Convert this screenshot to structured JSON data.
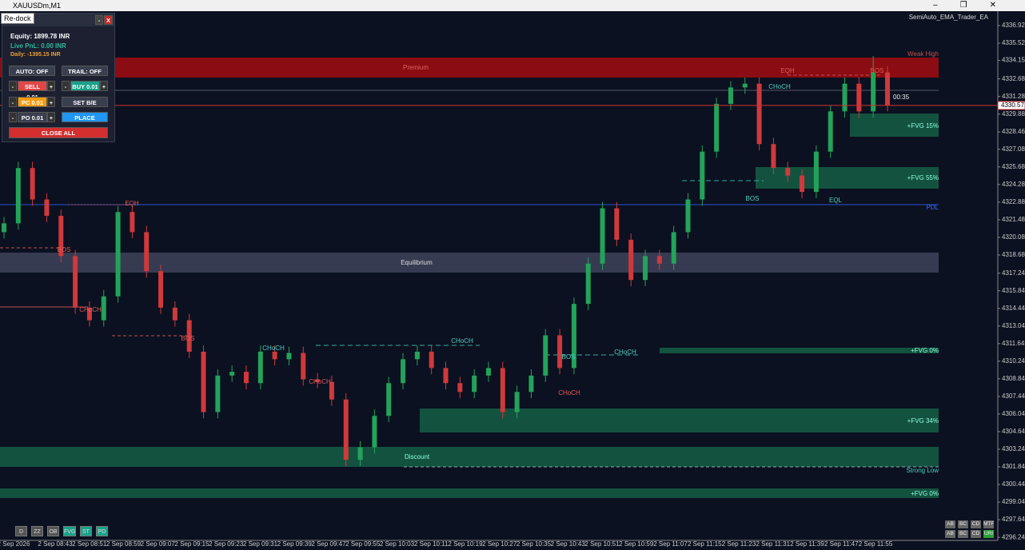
{
  "window": {
    "title": "XAUUSDm,M1"
  },
  "ea_name": "SemiAuto_EMA_Trader_EA",
  "panel": {
    "tooltip": "Re-dock",
    "minimize": "-",
    "close": "X",
    "equity": "Equity: 1899.78 INR",
    "live_pnl": "Live PnL: 0.00 INR",
    "daily": "Daily: -1395.15 INR",
    "auto": "AUTO: OFF",
    "trail": "TRAIL: OFF",
    "sell": "SELL 0.01",
    "buy": "BUY 0.01",
    "pc": "PC 0.01",
    "set_be": "SET B/E",
    "po": "PO 0.01",
    "place": "PLACE",
    "close_all": "CLOSE ALL",
    "minus": "-",
    "plus": "+"
  },
  "chart": {
    "type": "candlestick",
    "ylim": [
      4296.0,
      4338.0
    ],
    "yticks": [
      4336.925,
      4335.525,
      4334.15,
      4332.685,
      4331.285,
      4329.885,
      4328.465,
      4327.085,
      4325.685,
      4324.285,
      4322.885,
      4321.485,
      4320.085,
      4318.685,
      4317.24,
      4315.845,
      4314.445,
      4313.04,
      4311.645,
      4310.245,
      4308.845,
      4307.445,
      4306.045,
      4304.645,
      4303.245,
      4301.845,
      4300.445,
      4299.045,
      4297.645,
      4296.245
    ],
    "time_labels": [
      "2 Sep 2026",
      "2 Sep 08:43",
      "2 Sep 08:51",
      "2 Sep 08:59",
      "2 Sep 09:07",
      "2 Sep 09:15",
      "2 Sep 09:23",
      "2 Sep 09:31",
      "2 Sep 09:39",
      "2 Sep 09:47",
      "2 Sep 09:55",
      "2 Sep 10:03",
      "2 Sep 10:11",
      "2 Sep 10:19",
      "2 Sep 10:27",
      "2 Sep 10:35",
      "2 Sep 10:43",
      "2 Sep 10:51",
      "2 Sep 10:59",
      "2 Sep 11:07",
      "2 Sep 11:15",
      "2 Sep 11:23",
      "2 Sep 11:31",
      "2 Sep 11:39",
      "2 Sep 11:47",
      "2 Sep 11:55"
    ],
    "bull_color": "#23a35a",
    "bear_color": "#d0393b",
    "candles": [
      [
        4320.5,
        4321.7,
        4320.0,
        4321.2
      ],
      [
        4321.2,
        4326.1,
        4320.7,
        4325.6
      ],
      [
        4325.6,
        4326.1,
        4322.6,
        4323.1
      ],
      [
        4323.1,
        4323.6,
        4321.3,
        4321.8
      ],
      [
        4321.8,
        4322.3,
        4318.1,
        4318.6
      ],
      [
        4318.6,
        4319.1,
        4314.0,
        4314.5
      ],
      [
        4314.5,
        4315.0,
        4313.0,
        4313.5
      ],
      [
        4313.5,
        4315.9,
        4313.0,
        4315.4
      ],
      [
        4315.4,
        4322.6,
        4314.9,
        4322.1
      ],
      [
        4322.1,
        4322.6,
        4320.0,
        4320.5
      ],
      [
        4320.5,
        4321.0,
        4316.9,
        4317.4
      ],
      [
        4317.4,
        4317.9,
        4314.0,
        4314.5
      ],
      [
        4314.5,
        4315.0,
        4313.0,
        4313.5
      ],
      [
        4313.5,
        4314.0,
        4310.5,
        4311.0
      ],
      [
        4311.0,
        4311.5,
        4305.7,
        4306.2
      ],
      [
        4306.2,
        4309.6,
        4305.7,
        4309.1
      ],
      [
        4309.1,
        4309.9,
        4308.6,
        4309.4
      ],
      [
        4309.4,
        4309.9,
        4308.0,
        4308.5
      ],
      [
        4308.5,
        4311.5,
        4308.0,
        4311.0
      ],
      [
        4311.0,
        4311.5,
        4309.9,
        4310.4
      ],
      [
        4310.4,
        4311.4,
        4309.9,
        4310.9
      ],
      [
        4310.9,
        4311.4,
        4308.3,
        4308.8
      ],
      [
        4308.8,
        4309.3,
        4308.1,
        4308.6
      ],
      [
        4308.6,
        4309.1,
        4306.7,
        4307.2
      ],
      [
        4307.2,
        4307.7,
        4301.9,
        4302.4
      ],
      [
        4302.4,
        4303.9,
        4301.9,
        4303.4
      ],
      [
        4303.4,
        4306.4,
        4302.9,
        4305.9
      ],
      [
        4305.9,
        4309.0,
        4305.4,
        4308.5
      ],
      [
        4308.5,
        4310.9,
        4308.0,
        4310.4
      ],
      [
        4310.4,
        4311.5,
        4309.9,
        4311.0
      ],
      [
        4311.0,
        4311.5,
        4309.2,
        4309.7
      ],
      [
        4309.7,
        4310.2,
        4308.0,
        4308.5
      ],
      [
        4308.5,
        4309.0,
        4307.3,
        4307.8
      ],
      [
        4307.8,
        4309.6,
        4307.3,
        4309.1
      ],
      [
        4309.1,
        4310.2,
        4308.6,
        4309.7
      ],
      [
        4309.7,
        4310.2,
        4305.7,
        4306.2
      ],
      [
        4306.2,
        4308.3,
        4305.7,
        4307.8
      ],
      [
        4307.8,
        4309.6,
        4307.3,
        4309.1
      ],
      [
        4309.1,
        4312.8,
        4308.6,
        4312.3
      ],
      [
        4312.3,
        4312.8,
        4309.2,
        4309.7
      ],
      [
        4309.7,
        4315.3,
        4309.2,
        4314.8
      ],
      [
        4314.8,
        4318.5,
        4314.3,
        4318.0
      ],
      [
        4318.0,
        4322.9,
        4317.5,
        4322.4
      ],
      [
        4322.4,
        4322.9,
        4319.4,
        4319.9
      ],
      [
        4319.9,
        4320.4,
        4316.2,
        4316.7
      ],
      [
        4316.7,
        4319.1,
        4316.2,
        4318.6
      ],
      [
        4318.6,
        4319.1,
        4317.5,
        4318.0
      ],
      [
        4318.0,
        4321.0,
        4317.5,
        4320.5
      ],
      [
        4320.5,
        4323.6,
        4320.0,
        4323.1
      ],
      [
        4323.1,
        4327.4,
        4322.6,
        4326.9
      ],
      [
        4326.9,
        4331.2,
        4326.4,
        4330.7
      ],
      [
        4330.7,
        4332.5,
        4330.2,
        4332.0
      ],
      [
        4332.0,
        4332.8,
        4331.5,
        4332.3
      ],
      [
        4332.3,
        4332.8,
        4327.0,
        4327.5
      ],
      [
        4327.5,
        4328.0,
        4325.1,
        4325.6
      ],
      [
        4325.6,
        4326.1,
        4324.5,
        4325.0
      ],
      [
        4325.0,
        4325.5,
        4323.2,
        4323.7
      ],
      [
        4323.7,
        4327.4,
        4323.2,
        4326.9
      ],
      [
        4326.9,
        4330.6,
        4326.4,
        4330.1
      ],
      [
        4330.1,
        4332.8,
        4329.6,
        4332.3
      ],
      [
        4332.3,
        4332.8,
        4329.6,
        4330.1
      ],
      [
        4330.1,
        4334.5,
        4329.6,
        4333.2
      ],
      [
        4333.2,
        4333.7,
        4330.1,
        4330.6
      ]
    ],
    "price": 4330.57,
    "timer": "00:35",
    "zones": [
      "Premium",
      "Weak High",
      "Equilibrium",
      "Discount",
      "Strong Low",
      "+FVG 15%",
      "+FVG 55%",
      "+FVG 0%",
      "+FVG 34%",
      "+FVG 0%",
      "PDL"
    ],
    "structure": [
      "EQH",
      "BOS",
      "CHoCH",
      "BOS",
      "CHoCH",
      "CHoCH",
      "CHoCH",
      "BOS",
      "CHoCH",
      "CHoCH",
      "BOS",
      "CHoCH",
      "EQH",
      "BOS",
      "EQL"
    ]
  },
  "toolbar": [
    "D",
    "ZZ",
    "OB",
    "FVG",
    "ST",
    "PD"
  ],
  "mtf_buttons": [
    [
      "AB",
      "BC",
      "CD",
      "MTF"
    ],
    [
      "AB",
      "BC",
      "CD",
      "URI"
    ]
  ]
}
